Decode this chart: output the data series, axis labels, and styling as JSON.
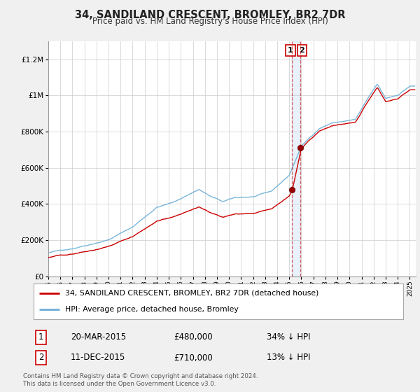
{
  "title": "34, SANDILAND CRESCENT, BROMLEY, BR2 7DR",
  "subtitle": "Price paid vs. HM Land Registry's House Price Index (HPI)",
  "hpi_label": "HPI: Average price, detached house, Bromley",
  "property_label": "34, SANDILAND CRESCENT, BROMLEY, BR2 7DR (detached house)",
  "footnote": "Contains HM Land Registry data © Crown copyright and database right 2024.\nThis data is licensed under the Open Government Licence v3.0.",
  "transaction1_date": "20-MAR-2015",
  "transaction1_price": "£480,000",
  "transaction1_hpi": "34% ↓ HPI",
  "transaction2_date": "11-DEC-2015",
  "transaction2_price": "£710,000",
  "transaction2_hpi": "13% ↓ HPI",
  "hpi_color": "#6baed6",
  "property_color": "#cc0000",
  "ylim": [
    0,
    1300000
  ],
  "xlim_start": 1995.0,
  "xlim_end": 2025.5,
  "transaction1_x": 2015.22,
  "transaction1_y": 480000,
  "transaction2_x": 2015.92,
  "transaction2_y": 710000,
  "bg_color": "#f0f0f0",
  "plot_bg": "#ffffff"
}
